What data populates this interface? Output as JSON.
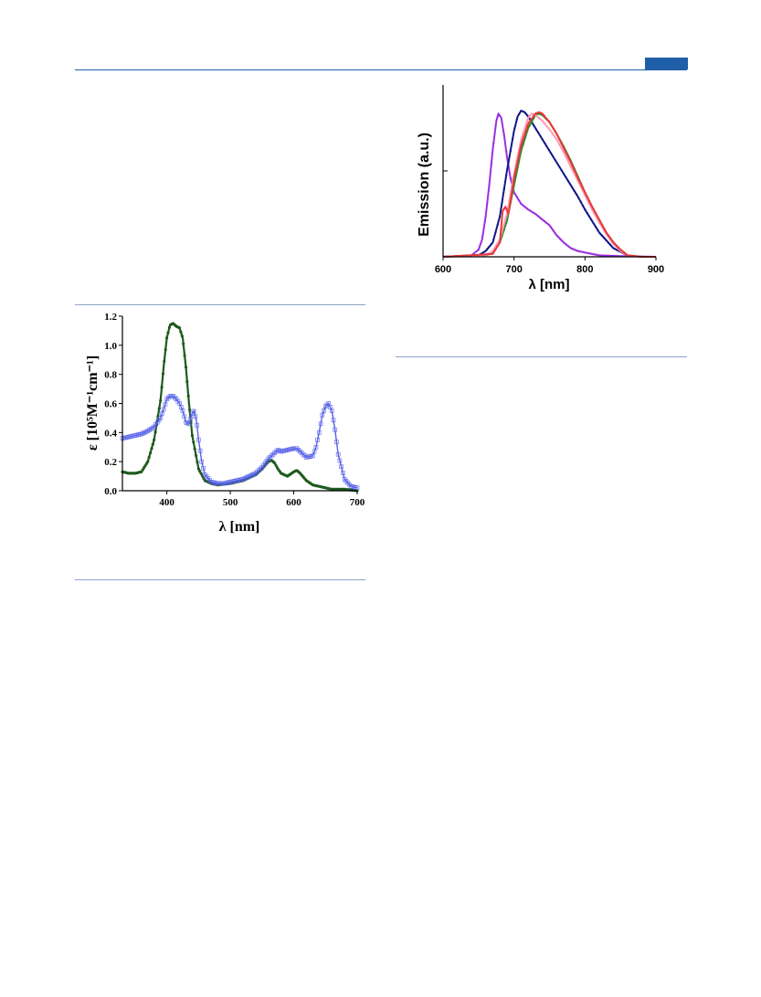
{
  "page": {
    "accent_color": "#1f5fa8",
    "rule_color": "#8aa4c8"
  },
  "chart_data": [
    {
      "type": "line",
      "title": "",
      "xlabel": "λ [nm]",
      "ylabel": "ε [10⁵M⁻¹cm⁻¹]",
      "xlim": [
        330,
        700
      ],
      "ylim": [
        0,
        1.2
      ],
      "xticks": [
        "400",
        "500",
        "600",
        "700"
      ],
      "yticks": [
        "0.0",
        "0.2",
        "0.4",
        "0.6",
        "0.8",
        "1.0",
        "1.2"
      ],
      "grid": false,
      "series": [
        {
          "color": "#1e5a1e",
          "marker": "filled-dot",
          "x": [
            330,
            340,
            350,
            360,
            370,
            380,
            390,
            395,
            400,
            405,
            410,
            415,
            420,
            425,
            430,
            435,
            440,
            450,
            460,
            470,
            480,
            500,
            520,
            540,
            550,
            560,
            565,
            570,
            575,
            580,
            590,
            600,
            605,
            610,
            620,
            630,
            640,
            650,
            660,
            670,
            680,
            690,
            700
          ],
          "y": [
            0.13,
            0.12,
            0.12,
            0.13,
            0.2,
            0.35,
            0.62,
            0.85,
            1.05,
            1.14,
            1.15,
            1.13,
            1.12,
            1.05,
            0.85,
            0.6,
            0.38,
            0.15,
            0.07,
            0.05,
            0.04,
            0.05,
            0.07,
            0.11,
            0.15,
            0.2,
            0.21,
            0.19,
            0.15,
            0.12,
            0.1,
            0.13,
            0.14,
            0.12,
            0.07,
            0.04,
            0.03,
            0.02,
            0.01,
            0.01,
            0.01,
            0.005,
            0.0
          ]
        },
        {
          "color": "#5560e8",
          "marker": "open-square",
          "x": [
            330,
            340,
            350,
            360,
            370,
            380,
            390,
            395,
            400,
            405,
            410,
            415,
            420,
            425,
            430,
            435,
            440,
            443,
            447,
            450,
            455,
            460,
            470,
            480,
            490,
            500,
            520,
            540,
            550,
            560,
            570,
            575,
            580,
            590,
            600,
            605,
            610,
            620,
            630,
            635,
            640,
            645,
            650,
            655,
            660,
            665,
            670,
            680,
            690,
            700
          ],
          "y": [
            0.36,
            0.37,
            0.38,
            0.39,
            0.41,
            0.44,
            0.5,
            0.56,
            0.63,
            0.65,
            0.65,
            0.63,
            0.6,
            0.55,
            0.47,
            0.46,
            0.53,
            0.55,
            0.47,
            0.35,
            0.2,
            0.11,
            0.06,
            0.05,
            0.05,
            0.06,
            0.08,
            0.12,
            0.16,
            0.22,
            0.26,
            0.28,
            0.27,
            0.28,
            0.29,
            0.29,
            0.27,
            0.23,
            0.24,
            0.3,
            0.4,
            0.52,
            0.58,
            0.6,
            0.55,
            0.42,
            0.25,
            0.08,
            0.03,
            0.02
          ]
        }
      ]
    },
    {
      "type": "line",
      "title": "",
      "xlabel": "λ [nm]",
      "ylabel": "Emission (a.u.)",
      "xlim": [
        600,
        900
      ],
      "ylim": [
        0,
        1.2
      ],
      "xticks": [
        "600",
        "700",
        "800",
        "900"
      ],
      "grid": false,
      "series": [
        {
          "color": "#9b30e0",
          "x": [
            600,
            640,
            650,
            655,
            660,
            665,
            670,
            675,
            678,
            682,
            686,
            690,
            695,
            700,
            710,
            720,
            730,
            740,
            750,
            760,
            770,
            780,
            790,
            800,
            820,
            850,
            900
          ],
          "y": [
            0.0,
            0.01,
            0.05,
            0.12,
            0.28,
            0.5,
            0.75,
            0.95,
            1.0,
            0.97,
            0.85,
            0.7,
            0.55,
            0.45,
            0.37,
            0.33,
            0.3,
            0.26,
            0.22,
            0.15,
            0.1,
            0.06,
            0.04,
            0.03,
            0.01,
            0.005,
            0.0
          ]
        },
        {
          "color": "#10188a",
          "x": [
            600,
            650,
            660,
            670,
            680,
            690,
            700,
            705,
            710,
            715,
            720,
            730,
            740,
            750,
            760,
            770,
            780,
            790,
            800,
            820,
            840,
            860,
            880,
            900
          ],
          "y": [
            0.0,
            0.01,
            0.04,
            0.1,
            0.28,
            0.6,
            0.88,
            0.98,
            1.02,
            1.01,
            0.98,
            0.9,
            0.82,
            0.74,
            0.66,
            0.58,
            0.5,
            0.42,
            0.33,
            0.17,
            0.06,
            0.01,
            0.0,
            0.0
          ]
        },
        {
          "color": "#2a8a2a",
          "x": [
            600,
            660,
            670,
            680,
            690,
            700,
            710,
            720,
            730,
            735,
            740,
            750,
            760,
            770,
            780,
            790,
            800,
            810,
            820,
            830,
            840,
            850,
            860,
            880,
            900
          ],
          "y": [
            0.0,
            0.01,
            0.03,
            0.1,
            0.25,
            0.5,
            0.74,
            0.9,
            0.99,
            1.0,
            0.99,
            0.94,
            0.86,
            0.77,
            0.67,
            0.56,
            0.45,
            0.35,
            0.26,
            0.17,
            0.1,
            0.05,
            0.01,
            0.0,
            0.0
          ]
        },
        {
          "color": "#ff9ab8",
          "x": [
            600,
            660,
            670,
            680,
            690,
            700,
            710,
            720,
            725,
            730,
            740,
            750,
            760,
            770,
            780,
            790,
            800,
            810,
            820,
            830,
            840,
            850,
            860,
            880,
            900
          ],
          "y": [
            0.0,
            0.01,
            0.04,
            0.12,
            0.3,
            0.58,
            0.82,
            0.97,
            1.0,
            0.99,
            0.95,
            0.89,
            0.82,
            0.73,
            0.63,
            0.53,
            0.43,
            0.33,
            0.24,
            0.16,
            0.09,
            0.04,
            0.01,
            0.0,
            0.0
          ]
        },
        {
          "color": "#e83a3a",
          "x": [
            600,
            670,
            680,
            684,
            688,
            692,
            696,
            700,
            710,
            720,
            730,
            735,
            740,
            750,
            760,
            770,
            780,
            790,
            800,
            810,
            820,
            830,
            840,
            850,
            860,
            880,
            900
          ],
          "y": [
            0.0,
            0.02,
            0.1,
            0.32,
            0.35,
            0.3,
            0.42,
            0.55,
            0.78,
            0.93,
            1.0,
            1.01,
            1.0,
            0.94,
            0.86,
            0.76,
            0.66,
            0.55,
            0.45,
            0.35,
            0.26,
            0.17,
            0.1,
            0.05,
            0.01,
            0.0,
            0.0
          ]
        }
      ]
    }
  ]
}
